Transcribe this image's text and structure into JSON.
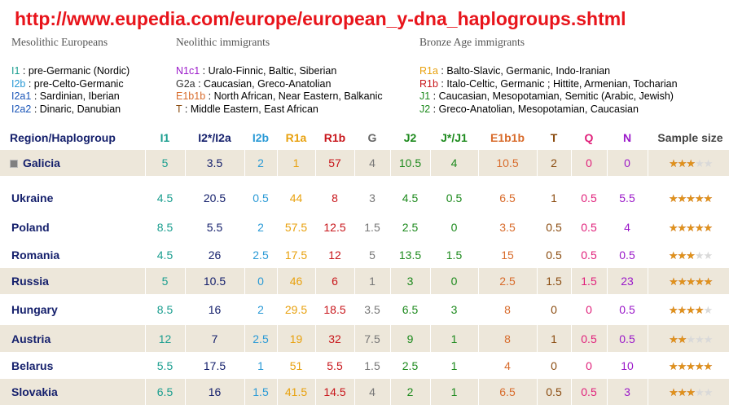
{
  "source_url": "http://www.eupedia.com/europe/european_y-dna_haplogroups.shtml",
  "legend": [
    {
      "title": "Mesolithic Europeans",
      "items": [
        {
          "code": "I1",
          "text": " : pre-Germanic (Nordic)",
          "color": "#1a9e8f"
        },
        {
          "code": "I2b",
          "text": " : pre-Celto-Germanic",
          "color": "#2a9ad6"
        },
        {
          "code": "I2a1",
          "text": " : Sardinian, Iberian",
          "color": "#1a55b8"
        },
        {
          "code": "I2a2",
          "text": " : Dinaric, Danubian",
          "color": "#1a55b8"
        }
      ]
    },
    {
      "title": "Neolithic immigrants",
      "items": [
        {
          "code": "N1c1",
          "text": " : Uralo-Finnic, Baltic, Siberian",
          "color": "#9b19c9"
        },
        {
          "code": "G2a",
          "text": " : Caucasian, Greco-Anatolian",
          "color": "#333333"
        },
        {
          "code": "E1b1b",
          "text": " : North African, Near Eastern, Balkanic",
          "color": "#d86b2b"
        },
        {
          "code": "T",
          "text": " : Middle Eastern, East African",
          "color": "#8a4b0f"
        }
      ]
    },
    {
      "title": "Bronze Age immigrants",
      "items": [
        {
          "code": "R1a",
          "text": " : Balto-Slavic, Germanic, Indo-Iranian",
          "color": "#e8a10e"
        },
        {
          "code": "R1b",
          "text": " : Italo-Celtic, Germanic ; Hittite, Armenian, Tocharian",
          "color": "#c8161b"
        },
        {
          "code": "J1",
          "text": " : Caucasian, Mesopotamian, Semitic (Arabic, Jewish)",
          "color": "#1d8a1d"
        },
        {
          "code": "J2",
          "text": " : Greco-Anatolian, Mesopotamian, Caucasian",
          "color": "#1d8a1d"
        }
      ]
    }
  ],
  "table": {
    "headers": [
      {
        "label": "Region/Haplogroup",
        "color": "#15206c"
      },
      {
        "label": "I1",
        "color": "#1a9e8f"
      },
      {
        "label": "I2*/I2a",
        "color": "#15206c"
      },
      {
        "label": "I2b",
        "color": "#2a9ad6"
      },
      {
        "label": "R1a",
        "color": "#e8a10e"
      },
      {
        "label": "R1b",
        "color": "#c8161b"
      },
      {
        "label": "G",
        "color": "#666666"
      },
      {
        "label": "J2",
        "color": "#1d8a1d"
      },
      {
        "label": "J*/J1",
        "color": "#1d8a1d"
      },
      {
        "label": "E1b1b",
        "color": "#d86b2b"
      },
      {
        "label": "T",
        "color": "#8a4b0f"
      },
      {
        "label": "Q",
        "color": "#e0207a"
      },
      {
        "label": "N",
        "color": "#9b19c9"
      },
      {
        "label": "Sample size",
        "color": "#444444"
      }
    ],
    "value_colors": [
      "#1a9e8f",
      "#15206c",
      "#2a9ad6",
      "#e8a10e",
      "#c8161b",
      "#777777",
      "#1d8a1d",
      "#1d8a1d",
      "#d86b2b",
      "#8a4b0f",
      "#e0207a",
      "#9b19c9"
    ],
    "rows": [
      {
        "region": "Galicia",
        "expander": true,
        "shaded": true,
        "values": [
          "5",
          "3.5",
          "2",
          "1",
          "57",
          "4",
          "10.5",
          "4",
          "10.5",
          "2",
          "0",
          "0"
        ],
        "stars": 3
      },
      {
        "region": "Ukraine",
        "expander": false,
        "shaded": false,
        "values": [
          "4.5",
          "20.5",
          "0.5",
          "44",
          "8",
          "3",
          "4.5",
          "0.5",
          "6.5",
          "1",
          "0.5",
          "5.5"
        ],
        "stars": 5
      },
      {
        "region": "Poland",
        "expander": false,
        "shaded": false,
        "values": [
          "8.5",
          "5.5",
          "2",
          "57.5",
          "12.5",
          "1.5",
          "2.5",
          "0",
          "3.5",
          "0.5",
          "0.5",
          "4"
        ],
        "stars": 5
      },
      {
        "region": "Romania",
        "expander": false,
        "shaded": false,
        "values": [
          "4.5",
          "26",
          "2.5",
          "17.5",
          "12",
          "5",
          "13.5",
          "1.5",
          "15",
          "0.5",
          "0.5",
          "0.5"
        ],
        "stars": 3
      },
      {
        "region": "Russia",
        "expander": false,
        "shaded": true,
        "values": [
          "5",
          "10.5",
          "0",
          "46",
          "6",
          "1",
          "3",
          "0",
          "2.5",
          "1.5",
          "1.5",
          "23"
        ],
        "stars": 5
      },
      {
        "region": "Hungary",
        "expander": false,
        "shaded": false,
        "values": [
          "8.5",
          "16",
          "2",
          "29.5",
          "18.5",
          "3.5",
          "6.5",
          "3",
          "8",
          "0",
          "0",
          "0.5"
        ],
        "stars": 4
      },
      {
        "region": "Austria",
        "expander": false,
        "shaded": true,
        "values": [
          "12",
          "7",
          "2.5",
          "19",
          "32",
          "7.5",
          "9",
          "1",
          "8",
          "1",
          "0.5",
          "0.5"
        ],
        "stars": 2
      },
      {
        "region": "Belarus",
        "expander": false,
        "shaded": false,
        "values": [
          "5.5",
          "17.5",
          "1",
          "51",
          "5.5",
          "1.5",
          "2.5",
          "1",
          "4",
          "0",
          "0",
          "10"
        ],
        "stars": 5
      },
      {
        "region": "Slovakia",
        "expander": false,
        "shaded": true,
        "values": [
          "6.5",
          "16",
          "1.5",
          "41.5",
          "14.5",
          "4",
          "2",
          "1",
          "6.5",
          "0.5",
          "0.5",
          "3"
        ],
        "stars": 3
      }
    ]
  }
}
